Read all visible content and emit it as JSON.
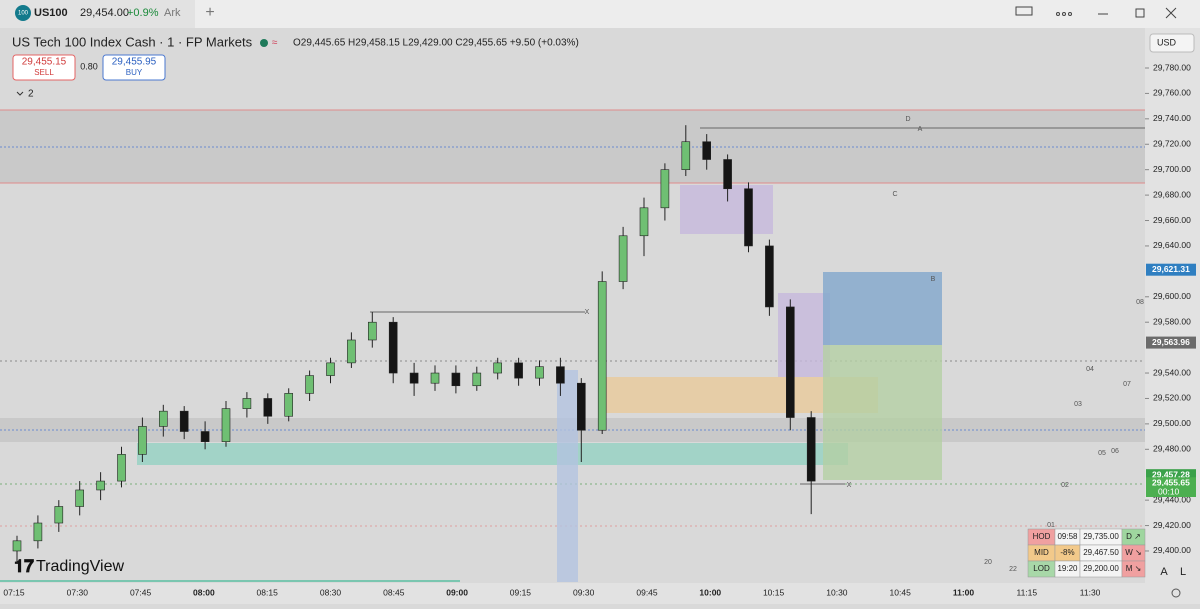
{
  "tab": {
    "badge": "100",
    "symbol": "US100",
    "price": "29,454.00",
    "change": "+0.9%",
    "name": "Ark",
    "plus": "+"
  },
  "header": {
    "title": "US Tech 100 Index Cash · 1 · FP Markets",
    "ohlc": "O29,445.65 H29,458.15 L29,429.00 C29,455.65 +9.50 (+0.03%)",
    "sell": {
      "price": "29,455.15",
      "label": "SELL"
    },
    "spread": "0.80",
    "buy": {
      "price": "29,455.95",
      "label": "BUY"
    },
    "indicators": "2",
    "currency": "USD"
  },
  "chart_data": {
    "type": "candlestick",
    "ylim": [
      29380,
      29790
    ],
    "yticks": [
      {
        "value": 29780,
        "label": "29,780.00"
      },
      {
        "value": 29760,
        "label": "29,760.00"
      },
      {
        "value": 29740,
        "label": "29,740.00"
      },
      {
        "value": 29720,
        "label": "29,720.00"
      },
      {
        "value": 29700,
        "label": "29,700.00"
      },
      {
        "value": 29680,
        "label": "29,680.00"
      },
      {
        "value": 29660,
        "label": "29,660.00"
      },
      {
        "value": 29640,
        "label": "29,640.00"
      },
      {
        "value": 29600,
        "label": "29,600.00"
      },
      {
        "value": 29580,
        "label": "29,580.00"
      },
      {
        "value": 29540,
        "label": "29,540.00"
      },
      {
        "value": 29520,
        "label": "29,520.00"
      },
      {
        "value": 29500,
        "label": "29,500.00"
      },
      {
        "value": 29480,
        "label": "29,480.00"
      },
      {
        "value": 29440,
        "label": "29,440.00"
      },
      {
        "value": 29420,
        "label": "29,420.00"
      },
      {
        "value": 29400,
        "label": "29,400.00"
      }
    ],
    "price_labels": [
      {
        "value": 29621.31,
        "label": "29,621.31",
        "color": "#2f7fc1"
      },
      {
        "value": 29563.96,
        "label": "29,563.96",
        "color": "#6b6b6b"
      },
      {
        "value": 29457.28,
        "label": "29,457.28",
        "color": "#3aa14a"
      },
      {
        "value": 29455.65,
        "label": "29,455.65",
        "color": "#4caf50"
      }
    ],
    "countdown": "00:10",
    "time_labels": [
      "07:15",
      "07:30",
      "07:45",
      "08:00",
      "08:15",
      "08:30",
      "08:45",
      "09:00",
      "09:15",
      "09:30",
      "09:45",
      "10:00",
      "10:15",
      "10:30",
      "10:45",
      "11:00",
      "11:15",
      "11:30"
    ],
    "open": [
      29400,
      29408,
      29422,
      29435,
      29448,
      29455,
      29476,
      29498,
      29510,
      29494,
      29486,
      29512,
      29520,
      29506,
      29524,
      29538,
      29548,
      29566,
      29580,
      29540,
      29532,
      29540,
      29530,
      29540,
      29548,
      29536,
      29545,
      29532,
      29495,
      29612,
      29648,
      29670,
      29700,
      29722,
      29708,
      29685,
      29640,
      29592,
      29505
    ],
    "high": [
      29412,
      29428,
      29440,
      29455,
      29462,
      29482,
      29505,
      29515,
      29514,
      29502,
      29518,
      29525,
      29524,
      29528,
      29542,
      29552,
      29572,
      29588,
      29584,
      29548,
      29546,
      29546,
      29545,
      29552,
      29552,
      29550,
      29552,
      29536,
      29620,
      29655,
      29678,
      29705,
      29735,
      29728,
      29712,
      29690,
      29645,
      29598,
      29510
    ],
    "low": [
      29390,
      29402,
      29415,
      29428,
      29440,
      29450,
      29470,
      29490,
      29488,
      29480,
      29482,
      29505,
      29500,
      29502,
      29518,
      29532,
      29544,
      29560,
      29532,
      29522,
      29526,
      29524,
      29526,
      29535,
      29530,
      29530,
      29522,
      29470,
      29492,
      29606,
      29632,
      29660,
      29695,
      29700,
      29675,
      29635,
      29585,
      29495,
      29429
    ],
    "close": [
      29408,
      29422,
      29435,
      29448,
      29455,
      29476,
      29498,
      29510,
      29494,
      29486,
      29512,
      29520,
      29506,
      29524,
      29538,
      29548,
      29566,
      29580,
      29540,
      29532,
      29540,
      29530,
      29540,
      29548,
      29536,
      29545,
      29532,
      29495,
      29612,
      29648,
      29670,
      29700,
      29722,
      29708,
      29685,
      29640,
      29592,
      29505,
      29455
    ],
    "up_color": "#6fbf73",
    "down_color": "#151515"
  },
  "annotations": {
    "d": "D",
    "a": "A",
    "c": "C",
    "b": "B",
    "x1": "X",
    "x2": "X",
    "n01": "01",
    "n02": "02",
    "n03": "03",
    "n04": "04",
    "n05": "05",
    "n06": "06",
    "n07": "07",
    "n08": "08",
    "n20": "20",
    "n22": "22"
  },
  "table": {
    "rows": [
      [
        "HOD",
        "09:58",
        "29,735.00",
        "D ↗"
      ],
      [
        "MID",
        "-8%",
        "29,467.50",
        "W ↘"
      ],
      [
        "LOD",
        "19:20",
        "29,200.00",
        "M ↘"
      ]
    ]
  },
  "footer": {
    "logo": "TradingView",
    "auto": "A",
    "log": "L"
  }
}
